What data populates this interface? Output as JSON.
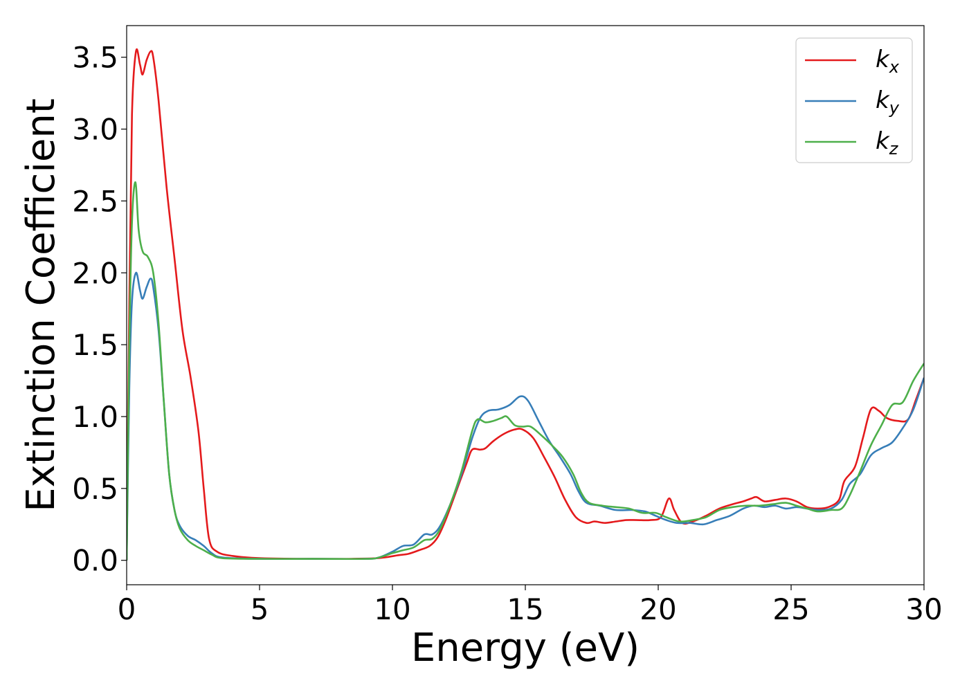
{
  "chart_data": {
    "type": "line",
    "title": "",
    "xlabel": "Energy (eV)",
    "ylabel": "Extinction Coefficient",
    "xlim": [
      0,
      30
    ],
    "ylim": [
      -0.17,
      3.72
    ],
    "xticks": [
      0,
      5,
      10,
      15,
      20,
      25,
      30
    ],
    "xtick_labels": [
      "0",
      "5",
      "10",
      "15",
      "20",
      "25",
      "30"
    ],
    "yticks": [
      0.0,
      0.5,
      1.0,
      1.5,
      2.0,
      2.5,
      3.0,
      3.5
    ],
    "ytick_labels": [
      "0.0",
      "0.5",
      "1.0",
      "1.5",
      "2.0",
      "2.5",
      "3.0",
      "3.5"
    ],
    "grid": false,
    "legend_position": "top-right",
    "series": [
      {
        "name": "k",
        "subscript": "x",
        "color": "#e41a1c",
        "points": [
          [
            0,
            0
          ],
          [
            0.1,
            1.8
          ],
          [
            0.2,
            3.1
          ],
          [
            0.35,
            3.54
          ],
          [
            0.5,
            3.45
          ],
          [
            0.6,
            3.38
          ],
          [
            0.75,
            3.48
          ],
          [
            0.9,
            3.54
          ],
          [
            1.0,
            3.5
          ],
          [
            1.2,
            3.2
          ],
          [
            1.5,
            2.6
          ],
          [
            1.8,
            2.1
          ],
          [
            2.1,
            1.6
          ],
          [
            2.4,
            1.28
          ],
          [
            2.7,
            0.9
          ],
          [
            2.9,
            0.5
          ],
          [
            3.1,
            0.15
          ],
          [
            3.4,
            0.06
          ],
          [
            4,
            0.03
          ],
          [
            5,
            0.015
          ],
          [
            7,
            0.01
          ],
          [
            9,
            0.012
          ],
          [
            9.7,
            0.02
          ],
          [
            10.2,
            0.035
          ],
          [
            10.6,
            0.045
          ],
          [
            11.0,
            0.07
          ],
          [
            11.4,
            0.1
          ],
          [
            11.7,
            0.16
          ],
          [
            12.0,
            0.28
          ],
          [
            12.4,
            0.48
          ],
          [
            12.8,
            0.68
          ],
          [
            13.0,
            0.77
          ],
          [
            13.3,
            0.77
          ],
          [
            13.5,
            0.78
          ],
          [
            13.8,
            0.83
          ],
          [
            14.2,
            0.88
          ],
          [
            14.6,
            0.91
          ],
          [
            14.9,
            0.91
          ],
          [
            15.3,
            0.85
          ],
          [
            15.7,
            0.72
          ],
          [
            16.1,
            0.58
          ],
          [
            16.5,
            0.42
          ],
          [
            16.9,
            0.3
          ],
          [
            17.3,
            0.26
          ],
          [
            17.6,
            0.27
          ],
          [
            18.0,
            0.26
          ],
          [
            18.4,
            0.27
          ],
          [
            18.8,
            0.28
          ],
          [
            19.2,
            0.28
          ],
          [
            19.7,
            0.28
          ],
          [
            20.1,
            0.3
          ],
          [
            20.4,
            0.43
          ],
          [
            20.6,
            0.35
          ],
          [
            20.9,
            0.26
          ],
          [
            21.3,
            0.27
          ],
          [
            21.8,
            0.31
          ],
          [
            22.3,
            0.36
          ],
          [
            22.8,
            0.39
          ],
          [
            23.2,
            0.41
          ],
          [
            23.5,
            0.43
          ],
          [
            23.7,
            0.44
          ],
          [
            24.0,
            0.41
          ],
          [
            24.4,
            0.42
          ],
          [
            24.8,
            0.43
          ],
          [
            25.2,
            0.41
          ],
          [
            25.6,
            0.37
          ],
          [
            26.0,
            0.36
          ],
          [
            26.4,
            0.37
          ],
          [
            26.8,
            0.42
          ],
          [
            27.0,
            0.55
          ],
          [
            27.4,
            0.65
          ],
          [
            27.7,
            0.85
          ],
          [
            28.0,
            1.05
          ],
          [
            28.3,
            1.04
          ],
          [
            28.6,
            0.99
          ],
          [
            29.0,
            0.97
          ],
          [
            29.4,
            0.98
          ],
          [
            29.7,
            1.12
          ],
          [
            30,
            1.27
          ]
        ]
      },
      {
        "name": "k",
        "subscript": "y",
        "color": "#377eb8",
        "points": [
          [
            0,
            0
          ],
          [
            0.1,
            1.2
          ],
          [
            0.2,
            1.8
          ],
          [
            0.35,
            2.0
          ],
          [
            0.5,
            1.88
          ],
          [
            0.6,
            1.82
          ],
          [
            0.75,
            1.9
          ],
          [
            0.9,
            1.96
          ],
          [
            1.0,
            1.9
          ],
          [
            1.2,
            1.6
          ],
          [
            1.4,
            1.1
          ],
          [
            1.6,
            0.6
          ],
          [
            1.8,
            0.35
          ],
          [
            2.0,
            0.24
          ],
          [
            2.3,
            0.17
          ],
          [
            2.6,
            0.14
          ],
          [
            2.9,
            0.1
          ],
          [
            3.2,
            0.05
          ],
          [
            3.6,
            0.02
          ],
          [
            5,
            0.01
          ],
          [
            7,
            0.01
          ],
          [
            9,
            0.01
          ],
          [
            9.5,
            0.02
          ],
          [
            10.0,
            0.06
          ],
          [
            10.4,
            0.1
          ],
          [
            10.8,
            0.11
          ],
          [
            11.2,
            0.18
          ],
          [
            11.5,
            0.18
          ],
          [
            11.8,
            0.24
          ],
          [
            12.2,
            0.4
          ],
          [
            12.6,
            0.6
          ],
          [
            13.0,
            0.85
          ],
          [
            13.3,
            0.99
          ],
          [
            13.6,
            1.04
          ],
          [
            14.0,
            1.05
          ],
          [
            14.4,
            1.08
          ],
          [
            14.8,
            1.14
          ],
          [
            15.1,
            1.11
          ],
          [
            15.5,
            0.97
          ],
          [
            15.9,
            0.83
          ],
          [
            16.3,
            0.72
          ],
          [
            16.7,
            0.6
          ],
          [
            17.0,
            0.48
          ],
          [
            17.3,
            0.4
          ],
          [
            17.8,
            0.38
          ],
          [
            18.4,
            0.35
          ],
          [
            19.0,
            0.35
          ],
          [
            19.5,
            0.34
          ],
          [
            19.9,
            0.31
          ],
          [
            20.3,
            0.28
          ],
          [
            20.7,
            0.26
          ],
          [
            21.2,
            0.26
          ],
          [
            21.7,
            0.25
          ],
          [
            22.2,
            0.28
          ],
          [
            22.7,
            0.31
          ],
          [
            23.2,
            0.36
          ],
          [
            23.6,
            0.38
          ],
          [
            24.0,
            0.37
          ],
          [
            24.4,
            0.38
          ],
          [
            24.8,
            0.36
          ],
          [
            25.2,
            0.37
          ],
          [
            25.6,
            0.36
          ],
          [
            26.0,
            0.35
          ],
          [
            26.5,
            0.36
          ],
          [
            26.9,
            0.42
          ],
          [
            27.2,
            0.53
          ],
          [
            27.6,
            0.6
          ],
          [
            28.0,
            0.73
          ],
          [
            28.4,
            0.78
          ],
          [
            28.8,
            0.82
          ],
          [
            29.2,
            0.92
          ],
          [
            29.6,
            1.05
          ],
          [
            30,
            1.27
          ]
        ]
      },
      {
        "name": "k",
        "subscript": "z",
        "color": "#4daf4a",
        "points": [
          [
            0,
            0
          ],
          [
            0.1,
            1.5
          ],
          [
            0.2,
            2.35
          ],
          [
            0.33,
            2.63
          ],
          [
            0.45,
            2.3
          ],
          [
            0.6,
            2.15
          ],
          [
            0.8,
            2.11
          ],
          [
            1.0,
            2.0
          ],
          [
            1.2,
            1.65
          ],
          [
            1.4,
            1.1
          ],
          [
            1.6,
            0.6
          ],
          [
            1.8,
            0.35
          ],
          [
            2.0,
            0.22
          ],
          [
            2.3,
            0.14
          ],
          [
            2.6,
            0.1
          ],
          [
            2.9,
            0.07
          ],
          [
            3.2,
            0.04
          ],
          [
            3.6,
            0.015
          ],
          [
            5,
            0.01
          ],
          [
            7,
            0.01
          ],
          [
            9,
            0.01
          ],
          [
            9.5,
            0.02
          ],
          [
            10.0,
            0.05
          ],
          [
            10.4,
            0.07
          ],
          [
            10.8,
            0.09
          ],
          [
            11.2,
            0.14
          ],
          [
            11.5,
            0.15
          ],
          [
            11.8,
            0.22
          ],
          [
            12.2,
            0.4
          ],
          [
            12.6,
            0.62
          ],
          [
            13.0,
            0.9
          ],
          [
            13.2,
            0.98
          ],
          [
            13.5,
            0.96
          ],
          [
            13.8,
            0.97
          ],
          [
            14.1,
            0.99
          ],
          [
            14.3,
            1.0
          ],
          [
            14.6,
            0.94
          ],
          [
            14.9,
            0.93
          ],
          [
            15.2,
            0.93
          ],
          [
            15.6,
            0.87
          ],
          [
            16.0,
            0.8
          ],
          [
            16.4,
            0.72
          ],
          [
            16.8,
            0.6
          ],
          [
            17.1,
            0.47
          ],
          [
            17.4,
            0.4
          ],
          [
            17.9,
            0.38
          ],
          [
            18.4,
            0.37
          ],
          [
            18.9,
            0.36
          ],
          [
            19.4,
            0.33
          ],
          [
            19.9,
            0.33
          ],
          [
            20.3,
            0.3
          ],
          [
            20.8,
            0.27
          ],
          [
            21.3,
            0.28
          ],
          [
            21.8,
            0.3
          ],
          [
            22.3,
            0.35
          ],
          [
            22.8,
            0.37
          ],
          [
            23.3,
            0.38
          ],
          [
            23.8,
            0.38
          ],
          [
            24.3,
            0.39
          ],
          [
            24.8,
            0.4
          ],
          [
            25.2,
            0.38
          ],
          [
            25.6,
            0.36
          ],
          [
            26.0,
            0.34
          ],
          [
            26.5,
            0.35
          ],
          [
            26.9,
            0.36
          ],
          [
            27.2,
            0.45
          ],
          [
            27.6,
            0.62
          ],
          [
            28.0,
            0.8
          ],
          [
            28.4,
            0.94
          ],
          [
            28.8,
            1.08
          ],
          [
            29.2,
            1.1
          ],
          [
            29.6,
            1.25
          ],
          [
            30,
            1.37
          ]
        ]
      }
    ]
  }
}
